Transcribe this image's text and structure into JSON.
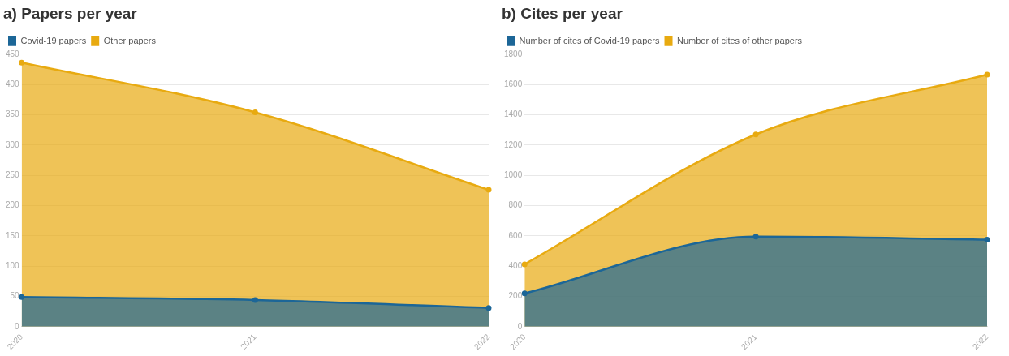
{
  "chart_data": [
    {
      "type": "area",
      "title": "a) Papers per year",
      "categories": [
        "2020",
        "2021",
        "2022"
      ],
      "series": [
        {
          "name": "Covid-19 papers",
          "color": "#1c6697",
          "values": [
            49,
            44,
            31
          ]
        },
        {
          "name": "Other papers",
          "color": "#e8aa10",
          "values": [
            436,
            354,
            226
          ]
        }
      ],
      "ylim": [
        0,
        450
      ],
      "yticks": [
        0,
        50,
        100,
        150,
        200,
        250,
        300,
        350,
        400,
        450
      ],
      "grid": "y",
      "legend": "top left",
      "marker": "circle"
    },
    {
      "type": "area",
      "title": "b) Cites per year",
      "categories": [
        "2020",
        "2021",
        "2022"
      ],
      "series": [
        {
          "name": "Number of cites of Covid-19 papers",
          "color": "#1c6697",
          "values": [
            220,
            595,
            575
          ]
        },
        {
          "name": "Number of cites of other papers",
          "color": "#e8aa10",
          "values": [
            412,
            1270,
            1665
          ]
        }
      ],
      "ylim": [
        0,
        1800
      ],
      "yticks": [
        0,
        200,
        400,
        600,
        800,
        1000,
        1200,
        1400,
        1600,
        1800
      ],
      "grid": "y",
      "legend": "top left",
      "marker": "circle"
    }
  ]
}
